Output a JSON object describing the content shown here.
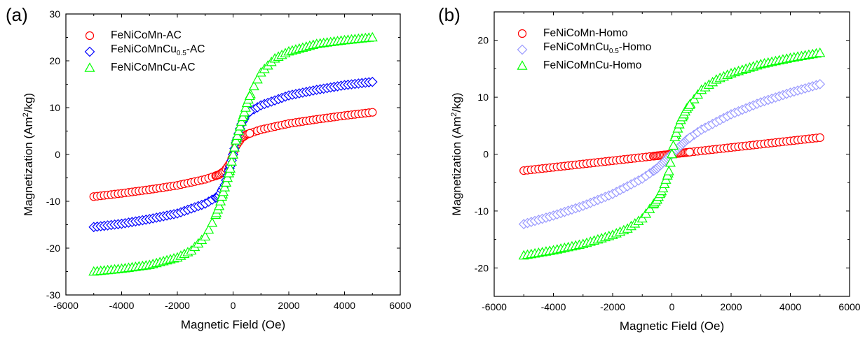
{
  "chart_data": [
    {
      "type": "scatter",
      "panel_label": "(a)",
      "xlabel": "Magnetic Field (Oe)",
      "ylabel_main": "Magnetization (Am",
      "ylabel_sup": "2",
      "ylabel_tail": "/kg)",
      "xlim": [
        -6000,
        6000
      ],
      "ylim": [
        -30,
        30
      ],
      "xticks": [
        -6000,
        -4000,
        -2000,
        0,
        2000,
        4000,
        6000
      ],
      "yticks": [
        -30,
        -20,
        -10,
        0,
        10,
        20,
        30
      ],
      "grid": false,
      "legend_position": "top-left",
      "series": [
        {
          "name": "FeNiCoMn-AC",
          "name_main": "FeNiCoMn-AC",
          "name_sub": "",
          "name_tail": "",
          "marker": "circle",
          "color": "#ff0000",
          "x": [
            -5000,
            -4000,
            -3000,
            -2000,
            -1000,
            -500,
            -300,
            -100,
            0,
            100,
            300,
            500,
            1000,
            2000,
            3000,
            4000,
            5000
          ],
          "y": [
            -9.0,
            -8.3,
            -7.5,
            -6.6,
            -5.3,
            -4.3,
            -3.5,
            -1.8,
            0,
            1.8,
            3.5,
            4.3,
            5.3,
            6.6,
            7.5,
            8.3,
            9.0
          ]
        },
        {
          "name": "FeNiCoMnCu0.5-AC",
          "name_main": "FeNiCoMnCu",
          "name_sub": "0.5",
          "name_tail": "-AC",
          "marker": "diamond",
          "color": "#0000ff",
          "x": [
            -5000,
            -4000,
            -3000,
            -2000,
            -1000,
            -500,
            -300,
            -100,
            0,
            100,
            300,
            500,
            1000,
            2000,
            3000,
            4000,
            5000
          ],
          "y": [
            -15.5,
            -14.8,
            -13.8,
            -12.6,
            -10.5,
            -8.8,
            -6.5,
            -2.5,
            0,
            2.5,
            6.5,
            8.8,
            10.5,
            12.6,
            13.8,
            14.8,
            15.5
          ]
        },
        {
          "name": "FeNiCoMnCu-AC",
          "name_main": "FeNiCoMnCu-AC",
          "name_sub": "",
          "name_tail": "",
          "marker": "triangle",
          "color": "#00ff00",
          "x": [
            -5000,
            -4000,
            -3000,
            -2000,
            -1500,
            -1000,
            -700,
            -500,
            -300,
            -100,
            0,
            100,
            300,
            500,
            700,
            1000,
            1500,
            2000,
            3000,
            4000,
            5000
          ],
          "y": [
            -25.0,
            -24.4,
            -23.6,
            -22.0,
            -20.5,
            -17.5,
            -14.0,
            -11.0,
            -7.0,
            -3.0,
            0,
            3.0,
            7.0,
            11.0,
            14.0,
            17.5,
            20.5,
            22.0,
            23.6,
            24.4,
            25.0
          ]
        }
      ]
    },
    {
      "type": "scatter",
      "panel_label": "(b)",
      "xlabel": "Magnetic Field (Oe)",
      "ylabel_main": "Magnetization (Am",
      "ylabel_sup": "2",
      "ylabel_tail": "/kg)",
      "xlim": [
        -6000,
        6000
      ],
      "ylim": [
        -25,
        25
      ],
      "xticks": [
        -6000,
        -4000,
        -2000,
        0,
        2000,
        4000,
        6000
      ],
      "yticks": [
        -20,
        -10,
        0,
        10,
        20
      ],
      "grid": false,
      "legend_position": "top-left",
      "series": [
        {
          "name": "FeNiCoMn-Homo",
          "name_main": "FeNiCoMn-Homo",
          "name_sub": "",
          "name_tail": "",
          "marker": "circle",
          "color": "#ff0000",
          "x": [
            -5000,
            0,
            5000
          ],
          "y": [
            -2.9,
            0,
            2.9
          ]
        },
        {
          "name": "FeNiCoMnCu0.5-Homo",
          "name_main": "FeNiCoMnCu",
          "name_sub": "0.5",
          "name_tail": "-Homo",
          "marker": "diamond",
          "color": "#9999ff",
          "x": [
            -5000,
            -4000,
            -3000,
            -2000,
            -1000,
            -500,
            0,
            500,
            1000,
            2000,
            3000,
            4000,
            5000
          ],
          "y": [
            -12.3,
            -10.8,
            -9.1,
            -7.0,
            -4.3,
            -2.5,
            0,
            2.5,
            4.3,
            7.0,
            9.1,
            10.8,
            12.3
          ]
        },
        {
          "name": "FeNiCoMnCu-Homo",
          "name_main": "FeNiCoMnCu-Homo",
          "name_sub": "",
          "name_tail": "",
          "marker": "triangle",
          "color": "#00ff00",
          "x": [
            -5000,
            -4000,
            -3000,
            -2000,
            -1500,
            -1000,
            -500,
            -300,
            -100,
            0,
            100,
            300,
            500,
            1000,
            1500,
            2000,
            3000,
            4000,
            5000
          ],
          "y": [
            -17.8,
            -16.9,
            -15.8,
            -14.2,
            -13.1,
            -11.3,
            -8.0,
            -6.0,
            -3.0,
            0,
            3.0,
            6.0,
            8.0,
            11.3,
            13.1,
            14.2,
            15.8,
            16.9,
            17.8
          ]
        }
      ]
    }
  ]
}
